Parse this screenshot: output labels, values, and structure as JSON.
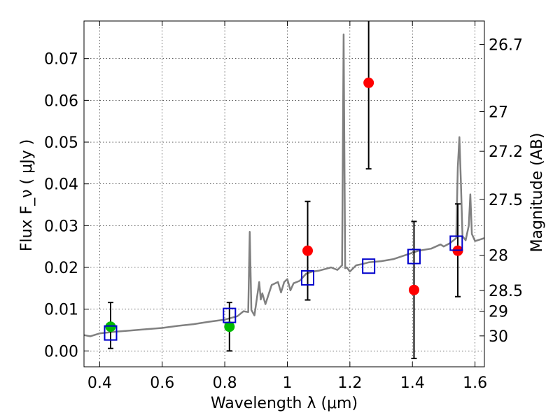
{
  "chart_data": {
    "type": "scatter",
    "xlabel": "Wavelength  λ (μm)",
    "ylabel_left": "Flux  F_ν  ( μJy )",
    "ylabel_right": "Magnitude (AB)",
    "xlim": [
      0.35,
      1.63
    ],
    "ylim": [
      -0.0038,
      0.079
    ],
    "x_ticks": [
      0.4,
      0.6,
      0.8,
      1.0,
      1.2,
      1.4,
      1.6
    ],
    "x_tick_labels": [
      "0.4",
      "0.6",
      "0.8",
      "1",
      "1.2",
      "1.4",
      "1.6"
    ],
    "y_ticks": [
      0.0,
      0.01,
      0.02,
      0.03,
      0.04,
      0.05,
      0.06,
      0.07
    ],
    "y_tick_labels": [
      "0.00",
      "0.01",
      "0.02",
      "0.03",
      "0.04",
      "0.05",
      "0.06",
      "0.07"
    ],
    "right_ticks": [
      {
        "flux": 0.0734,
        "label": "26.7"
      },
      {
        "flux": 0.0573,
        "label": "27"
      },
      {
        "flux": 0.0478,
        "label": "27.2"
      },
      {
        "flux": 0.0363,
        "label": "27.5"
      },
      {
        "flux": 0.0229,
        "label": "28"
      },
      {
        "flux": 0.0145,
        "label": "28.5"
      },
      {
        "flux": 0.0095,
        "label": "29"
      },
      {
        "flux": 0.0036,
        "label": "30"
      }
    ],
    "grid": true,
    "colors": {
      "model": "#808080",
      "red_points": "#ff0000",
      "green_points": "#00bb00",
      "model_boxes": "#0000cc",
      "errorbars": "#000000"
    },
    "series": [
      {
        "marker": "circle",
        "color": "#ff0000",
        "points": [
          {
            "x": 1.065,
            "y": 0.024,
            "err_low": 0.0118,
            "err_high": 0.0118
          },
          {
            "x": 1.26,
            "y": 0.0642,
            "err_low": 0.0206,
            "err_high": 0.03
          },
          {
            "x": 1.405,
            "y": 0.0146,
            "err_low": 0.0164,
            "err_high": 0.0164
          },
          {
            "x": 1.545,
            "y": 0.024,
            "err_low": 0.011,
            "err_high": 0.0112
          }
        ]
      },
      {
        "marker": "circle",
        "color": "#00bb00",
        "points": [
          {
            "x": 0.435,
            "y": 0.0058,
            "err_low": 0.0052,
            "err_high": 0.0058
          },
          {
            "x": 0.815,
            "y": 0.0058,
            "err_low": 0.0058,
            "err_high": 0.0058
          }
        ]
      },
      {
        "marker": "square-open",
        "color": "#0000cc",
        "points": [
          {
            "x": 0.435,
            "y": 0.0043
          },
          {
            "x": 0.815,
            "y": 0.0085
          },
          {
            "x": 1.065,
            "y": 0.0175
          },
          {
            "x": 1.26,
            "y": 0.0203
          },
          {
            "x": 1.405,
            "y": 0.0226
          },
          {
            "x": 1.54,
            "y": 0.0258
          }
        ]
      }
    ],
    "model_spectrum": {
      "color": "#808080",
      "x": [
        0.35,
        0.37,
        0.4,
        0.45,
        0.5,
        0.55,
        0.6,
        0.65,
        0.7,
        0.75,
        0.8,
        0.84,
        0.86,
        0.875,
        0.88,
        0.885,
        0.895,
        0.91,
        0.915,
        0.92,
        0.93,
        0.95,
        0.97,
        0.98,
        0.99,
        1.0,
        1.01,
        1.02,
        1.04,
        1.06,
        1.08,
        1.1,
        1.12,
        1.14,
        1.16,
        1.175,
        1.18,
        1.185,
        1.19,
        1.2,
        1.22,
        1.24,
        1.26,
        1.3,
        1.34,
        1.38,
        1.42,
        1.46,
        1.49,
        1.5,
        1.52,
        1.54,
        1.545,
        1.55,
        1.555,
        1.56,
        1.57,
        1.58,
        1.585,
        1.59,
        1.6,
        1.63
      ],
      "y": [
        0.0038,
        0.0035,
        0.0042,
        0.0046,
        0.0049,
        0.0052,
        0.0055,
        0.006,
        0.0064,
        0.007,
        0.0075,
        0.0083,
        0.0095,
        0.0093,
        0.0285,
        0.0098,
        0.0085,
        0.0165,
        0.0123,
        0.0138,
        0.0112,
        0.0158,
        0.0165,
        0.014,
        0.0165,
        0.0172,
        0.0145,
        0.0162,
        0.0168,
        0.0185,
        0.019,
        0.0192,
        0.0196,
        0.02,
        0.0194,
        0.0205,
        0.0758,
        0.0198,
        0.02,
        0.019,
        0.0205,
        0.0208,
        0.0212,
        0.0215,
        0.022,
        0.023,
        0.024,
        0.0245,
        0.0255,
        0.025,
        0.0258,
        0.027,
        0.044,
        0.0512,
        0.04,
        0.0275,
        0.0265,
        0.03,
        0.0375,
        0.028,
        0.0263,
        0.027
      ]
    }
  }
}
